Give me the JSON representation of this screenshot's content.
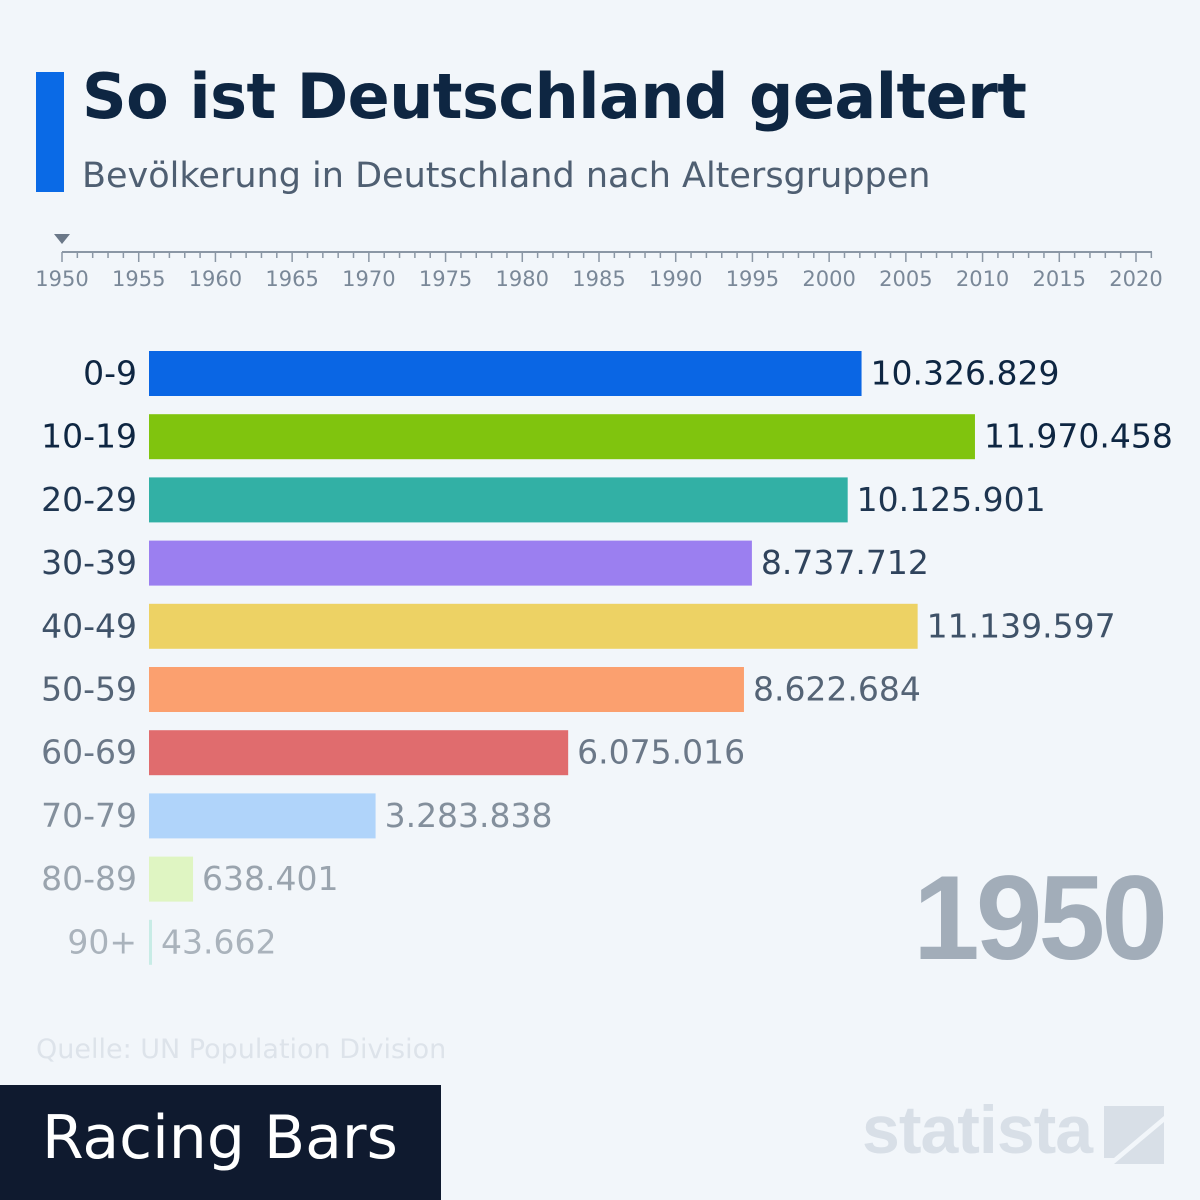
{
  "header": {
    "title": "So ist Deutschland gealtert",
    "subtitle": "Bevölkerung in Deutschland nach Altersgruppen"
  },
  "timeline": {
    "years": [
      "1950",
      "1955",
      "1960",
      "1965",
      "1970",
      "1975",
      "1980",
      "1985",
      "1990",
      "1995",
      "2000",
      "2005",
      "2010",
      "2015",
      "2020"
    ],
    "current": "1950"
  },
  "current_year": "1950",
  "source": "Quelle: UN Population Division",
  "footer": {
    "label": "Racing Bars"
  },
  "brand": {
    "name": "statista"
  },
  "colors": {
    "accent": "#0a6ae6",
    "background": "#f2f6fa",
    "title": "#0e2642"
  },
  "chart_data": {
    "type": "bar",
    "orientation": "horizontal",
    "categories": [
      "0-9",
      "10-19",
      "20-29",
      "30-39",
      "40-49",
      "50-59",
      "60-69",
      "70-79",
      "80-89",
      "90+"
    ],
    "values": [
      10326829,
      11970458,
      10125901,
      8737712,
      11139597,
      8622684,
      6075016,
      3283838,
      638401,
      43662
    ],
    "value_labels": [
      "10.326.829",
      "11.970.458",
      "10.125.901",
      "8.737.712",
      "11.139.597",
      "8.622.684",
      "6.075.016",
      "3.283.838",
      "638.401",
      "43.662"
    ],
    "colors": [
      "#0a66e4",
      "#80c40e",
      "#32b0a5",
      "#9b7ff0",
      "#edd264",
      "#fba06f",
      "#e06c6e",
      "#b0d4fa",
      "#dff5c2",
      "#c8ece6"
    ],
    "label_colors": [
      "#0e2642",
      "#0e2642",
      "#1e3550",
      "#2f435c",
      "#3f5268",
      "#556476",
      "#6b7888",
      "#838f9c",
      "#9aa4ae",
      "#aab3bc"
    ],
    "xlim": [
      0,
      12000000
    ]
  }
}
